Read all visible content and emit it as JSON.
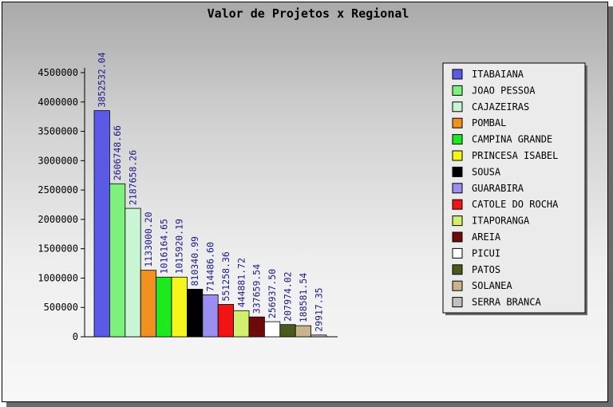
{
  "chart_data": {
    "type": "bar",
    "title": "Valor de Projetos x Regional",
    "xlabel": "",
    "ylabel": "",
    "ylim": [
      0,
      4500000
    ],
    "yticks": [
      0,
      500000,
      1000000,
      1500000,
      2000000,
      2500000,
      3000000,
      3500000,
      4000000,
      4500000
    ],
    "grid": false,
    "legend_position": "right",
    "series": [
      {
        "name": "ITABAIANA",
        "value": 3852532.04,
        "label": "3852532.04",
        "color": "#5a5ae6"
      },
      {
        "name": "JOAO PESSOA",
        "value": 2606748.66,
        "label": "2606748.66",
        "color": "#7ef07e"
      },
      {
        "name": "CAJAZEIRAS",
        "value": 2187658.26,
        "label": "2187658.26",
        "color": "#c8f5d4"
      },
      {
        "name": "POMBAL",
        "value": 1133000.2,
        "label": "1133000.20",
        "color": "#f0901e"
      },
      {
        "name": "CAMPINA GRANDE",
        "value": 1016164.65,
        "label": "1016164.65",
        "color": "#1ee81e"
      },
      {
        "name": "PRINCESA ISABEL",
        "value": 1015920.19,
        "label": "1015920.19",
        "color": "#f5f51e"
      },
      {
        "name": "SOUSA",
        "value": 810340.99,
        "label": "810340.99",
        "color": "#000000"
      },
      {
        "name": "GUARABIRA",
        "value": 714486.6,
        "label": "714486.60",
        "color": "#9a8ef0"
      },
      {
        "name": "CATOLE DO ROCHA",
        "value": 551258.36,
        "label": "551258.36",
        "color": "#f01414"
      },
      {
        "name": "ITAPORANGA",
        "value": 444881.72,
        "label": "444881.72",
        "color": "#d2f06e"
      },
      {
        "name": "AREIA",
        "value": 337659.54,
        "label": "337659.54",
        "color": "#6e0a0a"
      },
      {
        "name": "PICUI",
        "value": 256937.5,
        "label": "256937.50",
        "color": "#ffffff"
      },
      {
        "name": "PATOS",
        "value": 207974.02,
        "label": "207974.02",
        "color": "#4a5a1e"
      },
      {
        "name": "SOLANEA",
        "value": 188581.54,
        "label": "188581.54",
        "color": "#c8b48c"
      },
      {
        "name": "SERRA BRANCA",
        "value": 29917.35,
        "label": "29917.35",
        "color": "#c0c0c0"
      }
    ]
  }
}
